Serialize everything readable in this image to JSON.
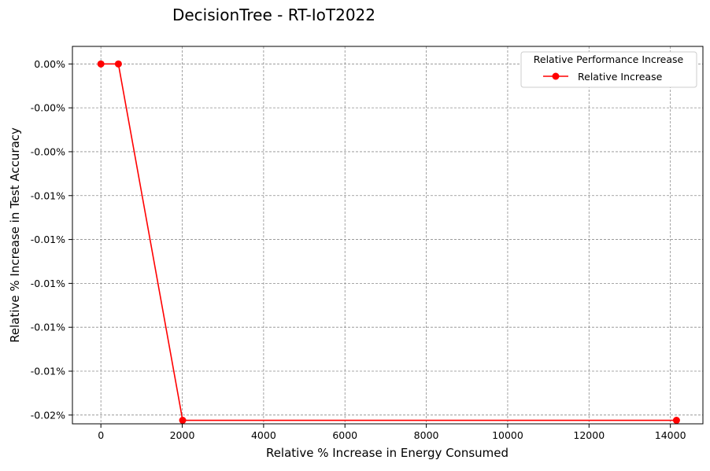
{
  "chart_data": {
    "type": "line",
    "title": "DecisionTree - RT-IoT2022",
    "xlabel": "Relative % Increase in Energy Consumed",
    "ylabel": "Relative % Increase in Test Accuracy",
    "xlim": [
      -700,
      14800
    ],
    "ylim": [
      -0.0205,
      0.001
    ],
    "x_ticks": [
      0,
      2000,
      4000,
      6000,
      8000,
      10000,
      12000,
      14000
    ],
    "x_tick_labels": [
      "0",
      "2000",
      "4000",
      "6000",
      "8000",
      "10000",
      "12000",
      "14000"
    ],
    "y_ticks": [
      0.0,
      -0.0025,
      -0.005,
      -0.0075,
      -0.01,
      -0.0125,
      -0.015,
      -0.0175,
      -0.02
    ],
    "y_tick_labels": [
      "0.00%",
      "-0.00%",
      "-0.00%",
      "-0.01%",
      "-0.01%",
      "-0.01%",
      "-0.01%",
      "-0.01%",
      "-0.02%"
    ],
    "grid": true,
    "legend": {
      "title": "Relative Performance Increase",
      "placement": "top-right"
    },
    "series": [
      {
        "name": "Relative Increase",
        "color": "#ff0000",
        "marker": "circle",
        "x": [
          0,
          430,
          2010,
          14150
        ],
        "y": [
          0.0,
          0.0,
          -0.0203,
          -0.0203
        ]
      }
    ]
  }
}
